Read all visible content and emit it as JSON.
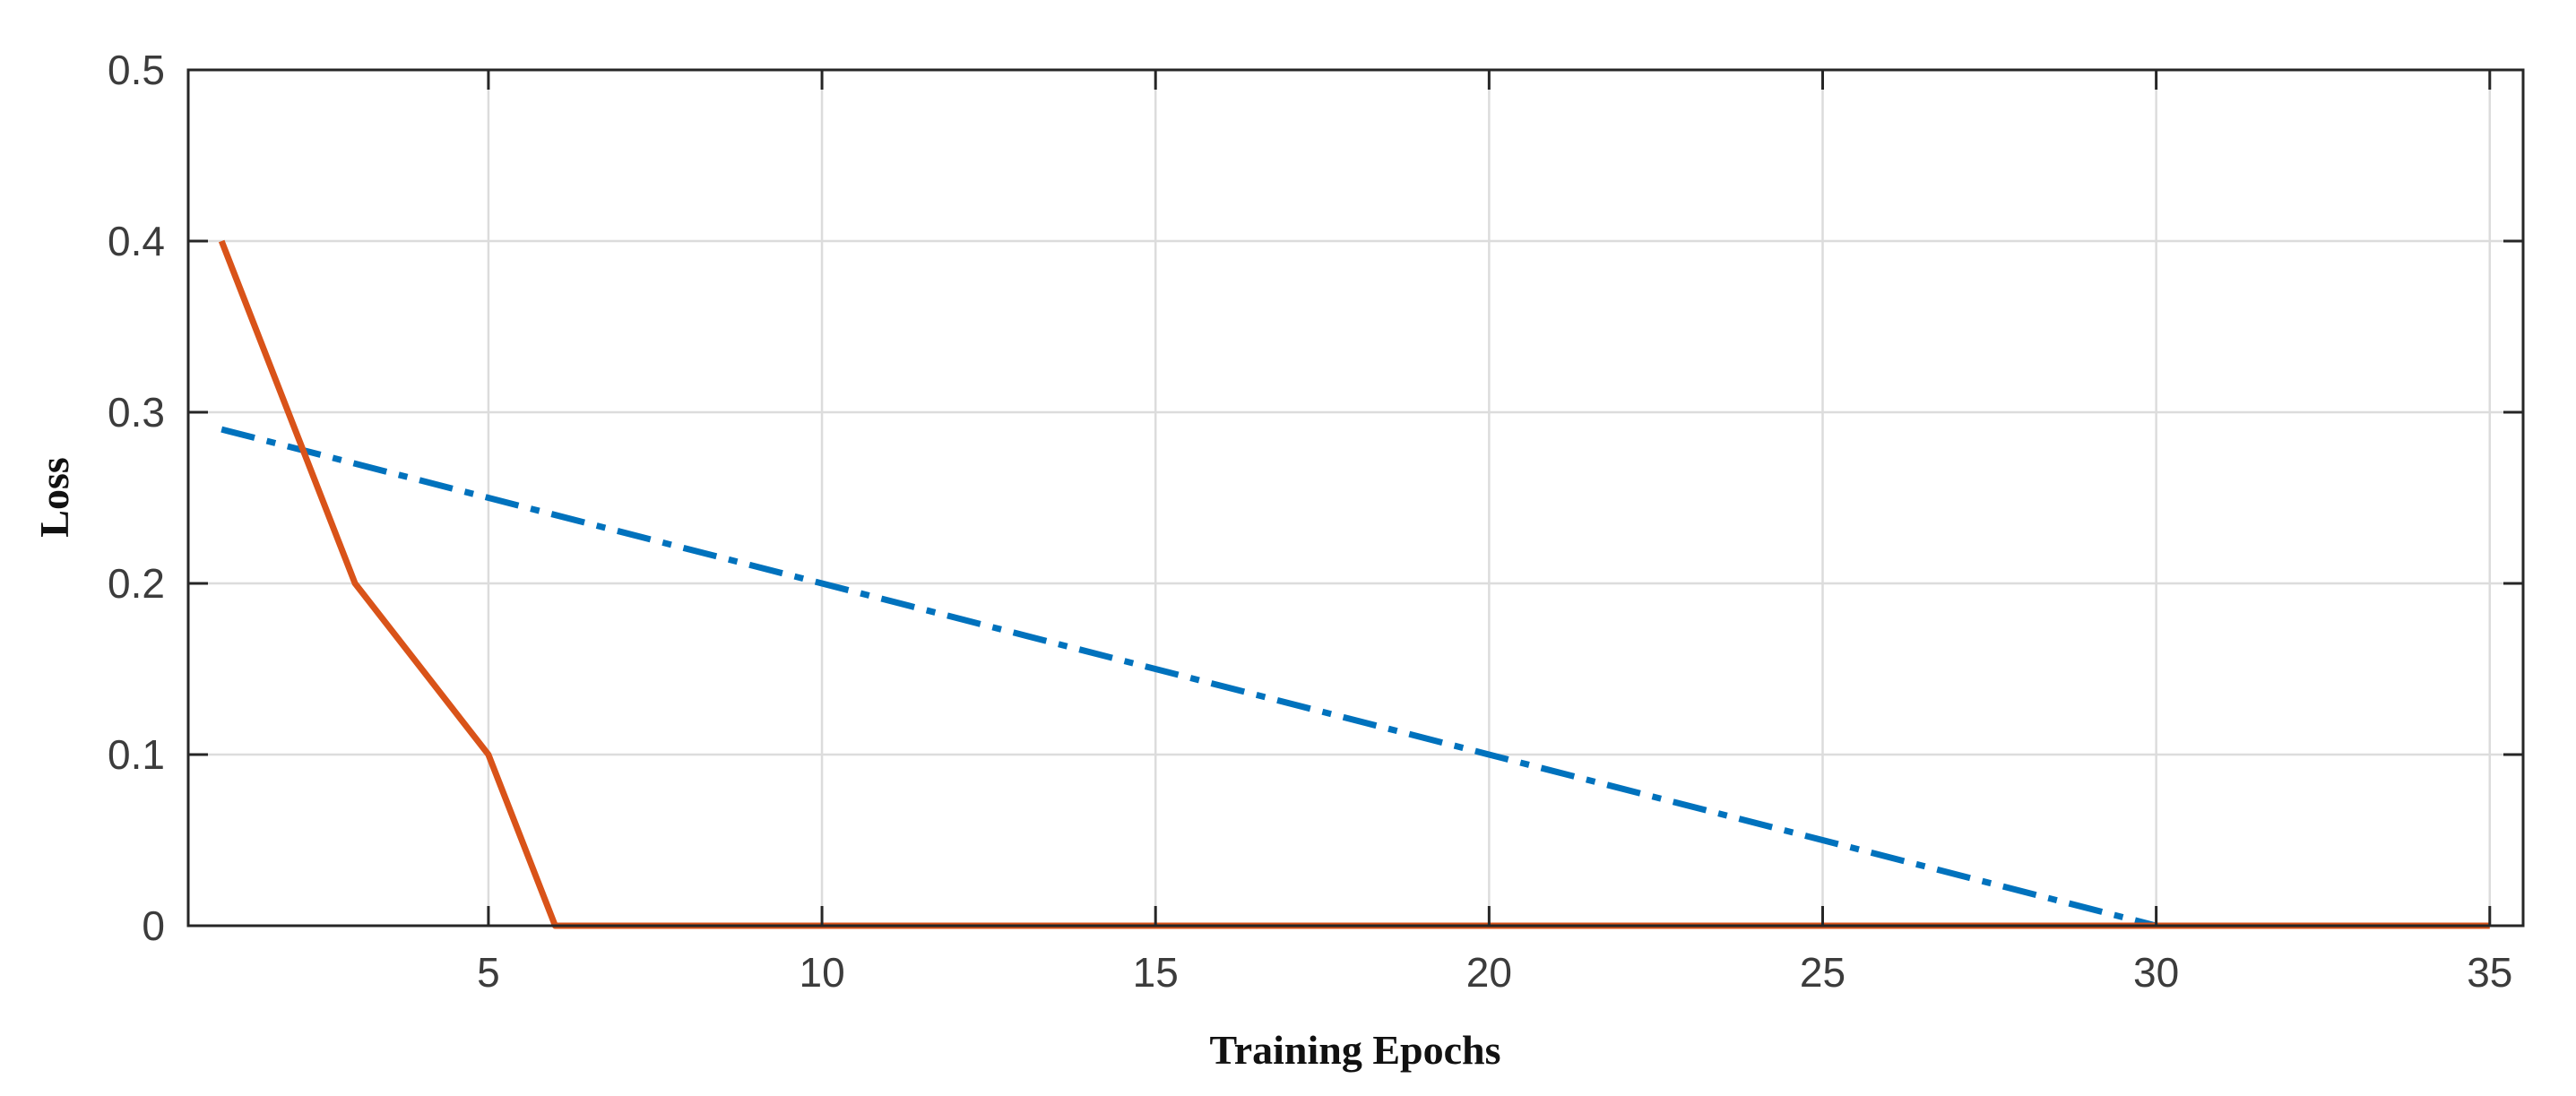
{
  "chart_data": {
    "type": "line",
    "title": "",
    "xlabel": "Training Epochs",
    "ylabel": "Loss",
    "xlim": [
      0.5,
      35.5
    ],
    "ylim": [
      0,
      0.5
    ],
    "xticks": [
      5,
      10,
      15,
      20,
      25,
      30,
      35
    ],
    "yticks": [
      0,
      0.1,
      0.2,
      0.3,
      0.4,
      0.5
    ],
    "xtick_labels": [
      "5",
      "10",
      "15",
      "20",
      "25",
      "30",
      "35"
    ],
    "ytick_labels": [
      "0",
      "0.1",
      "0.2",
      "0.3",
      "0.4",
      "0.5"
    ],
    "grid": true,
    "legend": null,
    "series": [
      {
        "color": "#0072bd",
        "line_style": "dash-dot",
        "x": [
          1,
          30
        ],
        "y": [
          0.29,
          0
        ]
      },
      {
        "color": "#d95319",
        "line_style": "solid",
        "x": [
          1,
          3,
          5,
          6,
          35
        ],
        "y": [
          0.4,
          0.2,
          0.1,
          0,
          0
        ]
      }
    ]
  }
}
